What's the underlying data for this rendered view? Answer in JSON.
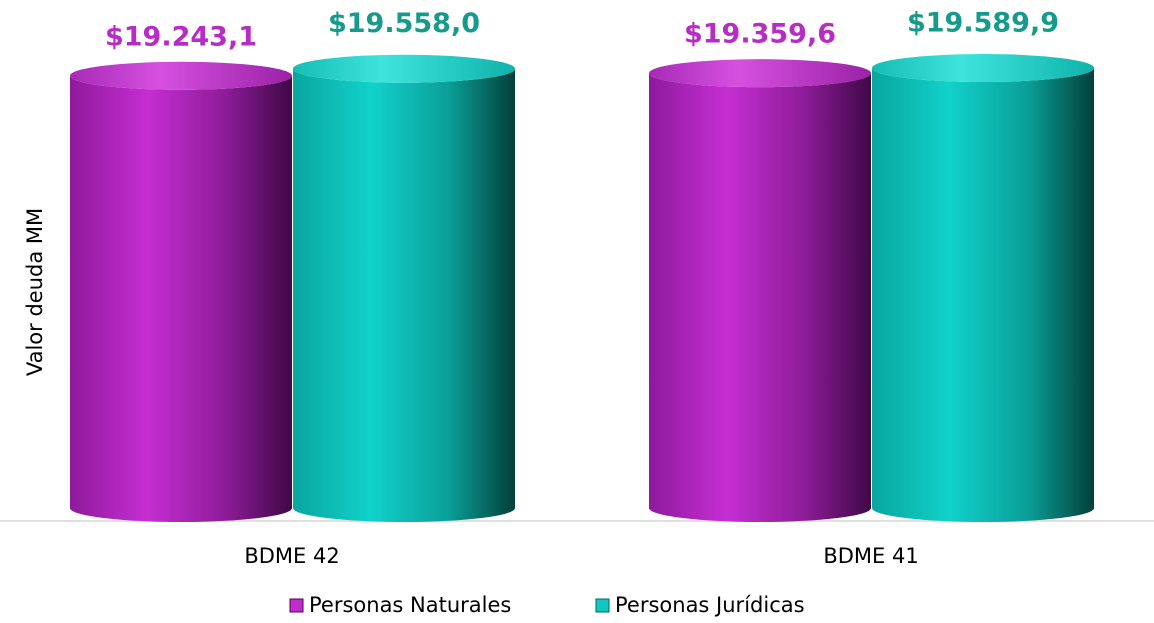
{
  "chart_data": {
    "type": "bar3d_cylinder",
    "y_axis_label": "Valor deuda MM",
    "categories": [
      "BDME 42",
      "BDME 41"
    ],
    "series": [
      {
        "name": "Personas Naturales",
        "color": "#c02ccc",
        "values": [
          19243.1,
          19359.6
        ],
        "value_labels": [
          "$19.243,1",
          "$19.359,6"
        ]
      },
      {
        "name": "Personas Jurídicas",
        "color": "#10c8c0",
        "values": [
          19558.0,
          19589.9
        ],
        "value_labels": [
          "$19.558,0",
          "$19.589,9"
        ]
      }
    ],
    "legend": "bottom"
  }
}
